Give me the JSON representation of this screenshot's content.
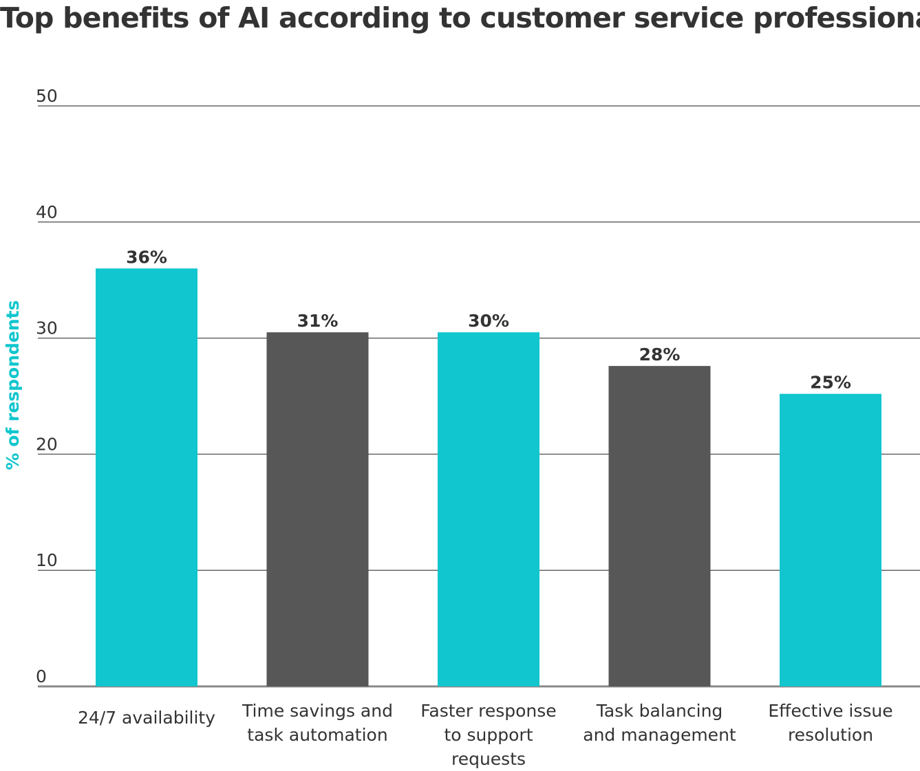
{
  "chart_data": {
    "type": "bar",
    "title": "Top benefits of AI according to customer service professionals",
    "ylabel": "% of respondents",
    "xlabel": "",
    "ylim": [
      0,
      50
    ],
    "yticks": [
      0,
      10,
      20,
      30,
      40,
      50
    ],
    "grid": true,
    "categories": [
      [
        "24/7 availability"
      ],
      [
        "Time savings and",
        "task automation"
      ],
      [
        "Faster response",
        "to support",
        "requests"
      ],
      [
        "Task balancing",
        "and management"
      ],
      [
        "Effective issue",
        "resolution"
      ]
    ],
    "values": [
      36,
      30.5,
      30.5,
      27.6,
      25.2
    ],
    "data_labels": [
      "36%",
      "31%",
      "30%",
      "28%",
      "25%"
    ],
    "colors": [
      "#11C6CE",
      "#575757",
      "#11C6CE",
      "#575757",
      "#11C6CE"
    ],
    "ylabel_color": "#11C6CE"
  }
}
